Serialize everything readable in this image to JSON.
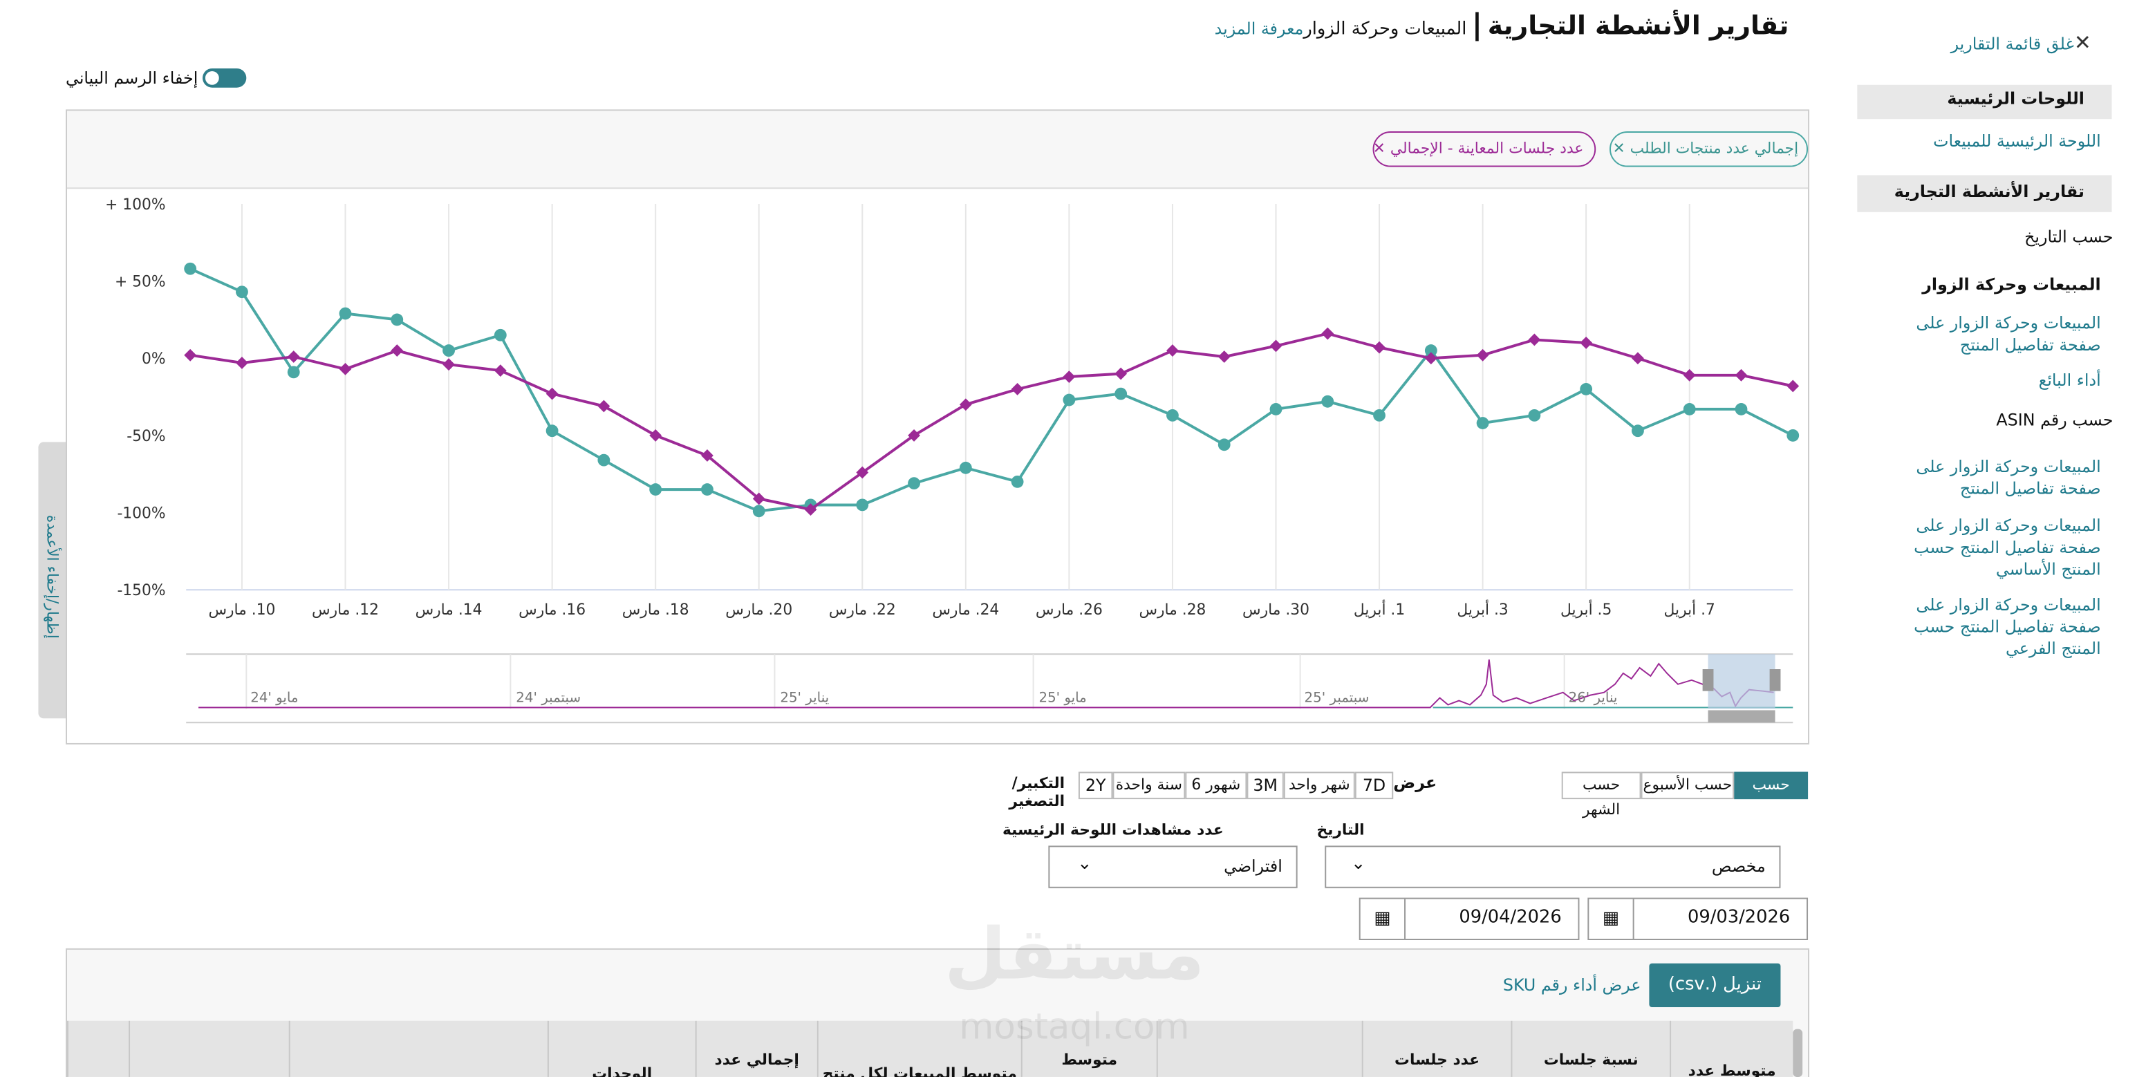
{
  "sidebar": {
    "close": "غلق قائمة التقارير",
    "dashboards_heading": "اللوحات الرئيسية",
    "dashboard_link": "اللوحة الرئيسية للمبيعات",
    "reports_heading": "تقارير الأنشطة التجارية",
    "by_date": "حسب التاريخ",
    "sales_traffic": "المبيعات وحركة الزوار",
    "date_links": [
      "المبيعات وحركة الزوار على صفحة تفاصيل المنتج",
      "أداء البائع"
    ],
    "by_asin": "حسب رقم ASIN",
    "asin_links": [
      "المبيعات وحركة الزوار على صفحة تفاصيل المنتج",
      "المبيعات وحركة الزوار على صفحة تفاصيل المنتج حسب المنتج الأساسي",
      "المبيعات وحركة الزوار على صفحة تفاصيل المنتج حسب المنتج الفرعي"
    ]
  },
  "header": {
    "title": "تقارير الأنشطة التجارية",
    "separator": "|",
    "subtitle": "المبيعات وحركة الزوار",
    "learn_more": "معرفة المزيد"
  },
  "toggle": "إخفاء الرسم البياني",
  "columns_tab": "إظهار/إخفاء الأعمدة",
  "chart_data": {
    "type": "line",
    "categories": [
      null,
      "10. مارس",
      null,
      "12. مارس",
      null,
      "14. مارس",
      null,
      "16. مارس",
      null,
      "18. مارس",
      null,
      "20. مارس",
      null,
      "22. مارس",
      null,
      "24. مارس",
      null,
      "26. مارس",
      null,
      "28. مارس",
      null,
      "30. مارس",
      null,
      "1. أبريل",
      null,
      "3. أبريل",
      null,
      "5. أبريل",
      null,
      "7. أبريل",
      null,
      null
    ],
    "series": [
      {
        "name": "إجمالي عدد منتجات الطلب",
        "color": "#4aa8a4",
        "marker": "circle",
        "values": [
          58,
          43,
          -9,
          29,
          25,
          5,
          15,
          -47,
          -66,
          -85,
          -85,
          -99,
          -95,
          -95,
          -81,
          -71,
          -80,
          -27,
          -23,
          -37,
          -56,
          -33,
          -28,
          -37,
          5,
          -42,
          -37,
          -20,
          -47,
          -33,
          -33,
          -50
        ]
      },
      {
        "name": "عدد جلسات المعاينة - الإجمالي",
        "color": "#9c2a96",
        "marker": "diamond",
        "values": [
          2,
          -3,
          1,
          -7,
          5,
          -4,
          -8,
          -23,
          -31,
          -50,
          -63,
          -91,
          -98,
          -74,
          -50,
          -30,
          -20,
          -12,
          -10,
          5,
          1,
          8,
          16,
          7,
          0,
          2,
          12,
          10,
          0,
          -11,
          -11,
          -18
        ]
      }
    ],
    "ylim": [
      -150,
      100
    ],
    "yticks": [
      {
        "value": -150,
        "label": "-150%"
      },
      {
        "value": -100,
        "label": "-100%"
      },
      {
        "value": -50,
        "label": "-50%"
      },
      {
        "value": 0,
        "label": "0%"
      },
      {
        "value": 50,
        "label": "+ 50%"
      },
      {
        "value": 100,
        "label": "+ 100%"
      }
    ],
    "grid": true
  },
  "navigator_labels": [
    "24' مايو",
    "24' سبتمبر",
    "25' يناير",
    "25' مايو",
    "25' سبتمبر",
    "26' يناير"
  ],
  "controls": {
    "granularity": [
      "حسب اليوم",
      "حسب الأسبوع",
      "حسب الشهر"
    ],
    "view": "عرض",
    "zoom_buttons": [
      "7D",
      "شهر واحد",
      "3M",
      "6 شهور",
      "سنة واحدة",
      "2Y"
    ],
    "zoom": "التكبير/التصغير",
    "date_label": "التاريخ",
    "date_select": "مخصص",
    "views_label": "عدد مشاهدات اللوحة الرئيسية",
    "views_select": "افتراضي",
    "date_from": "09/03/2026",
    "date_to": "09/04/2026"
  },
  "table": {
    "download": "تنزيل (.csv)",
    "sku_link": "عرض أداء رقم SKU",
    "headers": [
      "متوسط عدد",
      "نسبة جلسات",
      "عدد جلسات",
      "متوسط",
      "متوسط المبيعات لكل منتج",
      "إجمالي عدد",
      "الوحدات"
    ]
  },
  "watermark": [
    "مستقل",
    "mostaql.com"
  ]
}
